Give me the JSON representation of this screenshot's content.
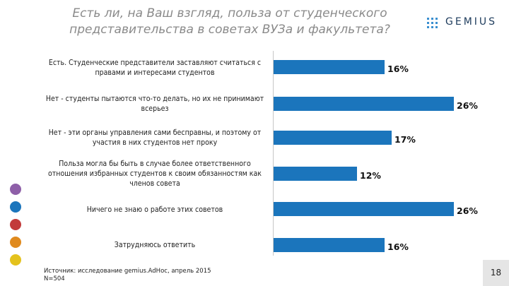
{
  "title": "Есть ли, на Ваш взгляд, польза от студенческого представительства в советах ВУЗа и факультета?",
  "logo": {
    "text": "GEMIUS"
  },
  "chart_data": {
    "type": "bar",
    "orientation": "horizontal",
    "title": "Есть ли, на Ваш взгляд, польза от студенческого представительства в советах ВУЗа и факультета?",
    "categories": [
      "Есть. Студенческие представители заставляют считаться с правами и интересами студентов",
      "Нет - студенты пытаются что-то делать, но их не принимают всерьез",
      "Нет - эти органы управления сами бесправны, и поэтому от участия в них студентов нет проку",
      "Польза могла бы быть в случае более ответственного отношения избранных студентов к своим обязанностям как членов совета",
      "Ничего не знаю о работе этих советов",
      "Затрудняюсь ответить"
    ],
    "values": [
      16,
      26,
      17,
      12,
      26,
      16
    ],
    "value_labels": [
      "16%",
      "26%",
      "17%",
      "12%",
      "26%",
      "16%"
    ],
    "xlim": [
      0,
      26
    ],
    "bar_color": "#1b75bc",
    "xlabel": "",
    "ylabel": ""
  },
  "source": {
    "line1": "Источник: исследование gemius.AdHoc, апрель 2015",
    "line2": "N=504"
  },
  "page_number": "18"
}
